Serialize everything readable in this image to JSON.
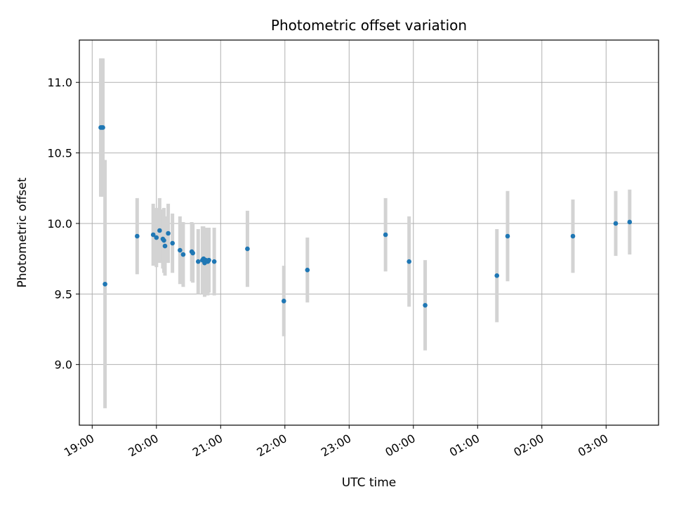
{
  "chart_data": {
    "type": "scatter",
    "title": "Photometric offset variation",
    "xlabel": "UTC time",
    "ylabel": "Photometric offset",
    "grid": true,
    "legend": "none",
    "colors": {
      "points": "#1f77b4",
      "errorbars": "#d3d3d3",
      "grid": "#b0b0b0"
    },
    "xlim": [
      "18:48",
      "27:49"
    ],
    "ylim": [
      8.57,
      11.3
    ],
    "x_ticks": [
      "19:00",
      "20:00",
      "21:00",
      "22:00",
      "23:00",
      "00:00",
      "01:00",
      "02:00",
      "03:00"
    ],
    "x_tick_values": [
      "19:00",
      "20:00",
      "21:00",
      "22:00",
      "23:00",
      "24:00",
      "25:00",
      "26:00",
      "27:00"
    ],
    "y_ticks": [
      "9.0",
      "9.5",
      "10.0",
      "10.5",
      "11.0"
    ],
    "y_tick_values": [
      9.0,
      9.5,
      10.0,
      10.5,
      11.0
    ],
    "points": [
      {
        "t": "19:08",
        "y": 10.68,
        "err": 0.49
      },
      {
        "t": "19:09",
        "y": 10.68,
        "err": 0.49
      },
      {
        "t": "19:10",
        "y": 10.68,
        "err": 0.49
      },
      {
        "t": "19:12",
        "y": 9.57,
        "err": 0.88
      },
      {
        "t": "19:42",
        "y": 9.91,
        "err": 0.27
      },
      {
        "t": "19:57",
        "y": 9.92,
        "err": 0.22
      },
      {
        "t": "20:00",
        "y": 9.9,
        "err": 0.21
      },
      {
        "t": "20:03",
        "y": 9.95,
        "err": 0.23
      },
      {
        "t": "20:06",
        "y": 9.89,
        "err": 0.21
      },
      {
        "t": "20:07",
        "y": 9.88,
        "err": 0.23
      },
      {
        "t": "20:08",
        "y": 9.84,
        "err": 0.21
      },
      {
        "t": "20:11",
        "y": 9.93,
        "err": 0.21
      },
      {
        "t": "20:15",
        "y": 9.86,
        "err": 0.21
      },
      {
        "t": "20:22",
        "y": 9.81,
        "err": 0.24
      },
      {
        "t": "20:25",
        "y": 9.78,
        "err": 0.23
      },
      {
        "t": "20:33",
        "y": 9.8,
        "err": 0.21
      },
      {
        "t": "20:34",
        "y": 9.79,
        "err": 0.21
      },
      {
        "t": "20:39",
        "y": 9.73,
        "err": 0.23
      },
      {
        "t": "20:43",
        "y": 9.74,
        "err": 0.24
      },
      {
        "t": "20:44",
        "y": 9.75,
        "err": 0.23
      },
      {
        "t": "20:45",
        "y": 9.72,
        "err": 0.24
      },
      {
        "t": "20:46",
        "y": 9.74,
        "err": 0.23
      },
      {
        "t": "20:48",
        "y": 9.73,
        "err": 0.24
      },
      {
        "t": "20:49",
        "y": 9.74,
        "err": 0.23
      },
      {
        "t": "20:54",
        "y": 9.73,
        "err": 0.24
      },
      {
        "t": "21:25",
        "y": 9.82,
        "err": 0.27
      },
      {
        "t": "21:59",
        "y": 9.45,
        "err": 0.25
      },
      {
        "t": "22:21",
        "y": 9.67,
        "err": 0.23
      },
      {
        "t": "23:34",
        "y": 9.92,
        "err": 0.26
      },
      {
        "t": "23:56",
        "y": 9.73,
        "err": 0.32
      },
      {
        "t": "24:11",
        "y": 9.42,
        "err": 0.32
      },
      {
        "t": "25:18",
        "y": 9.63,
        "err": 0.33
      },
      {
        "t": "25:28",
        "y": 9.91,
        "err": 0.32
      },
      {
        "t": "26:29",
        "y": 9.91,
        "err": 0.26
      },
      {
        "t": "27:09",
        "y": 10.0,
        "err": 0.23
      },
      {
        "t": "27:22",
        "y": 10.01,
        "err": 0.23
      }
    ]
  }
}
